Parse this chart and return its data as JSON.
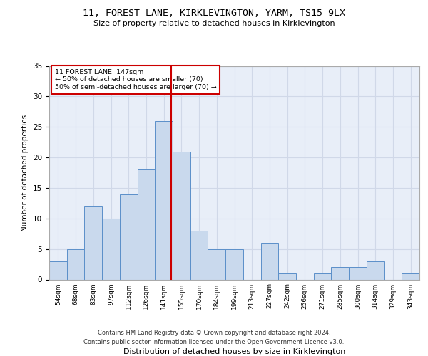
{
  "title1": "11, FOREST LANE, KIRKLEVINGTON, YARM, TS15 9LX",
  "title2": "Size of property relative to detached houses in Kirklevington",
  "xlabel": "Distribution of detached houses by size in Kirklevington",
  "ylabel": "Number of detached properties",
  "bin_labels": [
    "54sqm",
    "68sqm",
    "83sqm",
    "97sqm",
    "112sqm",
    "126sqm",
    "141sqm",
    "155sqm",
    "170sqm",
    "184sqm",
    "199sqm",
    "213sqm",
    "227sqm",
    "242sqm",
    "256sqm",
    "271sqm",
    "285sqm",
    "300sqm",
    "314sqm",
    "329sqm",
    "343sqm"
  ],
  "bar_heights": [
    3,
    5,
    12,
    10,
    14,
    18,
    26,
    21,
    8,
    5,
    5,
    0,
    6,
    1,
    0,
    1,
    2,
    2,
    3,
    0,
    1
  ],
  "bar_color": "#c9d9ed",
  "bar_edge_color": "#5b8fc9",
  "grid_color": "#d0d8e8",
  "background_color": "#e8eef8",
  "vline_color": "#cc0000",
  "annotation_text": "11 FOREST LANE: 147sqm\n← 50% of detached houses are smaller (70)\n50% of semi-detached houses are larger (70) →",
  "annotation_box_color": "white",
  "annotation_box_edge": "#cc0000",
  "footer1": "Contains HM Land Registry data © Crown copyright and database right 2024.",
  "footer2": "Contains public sector information licensed under the Open Government Licence v3.0.",
  "ylim": [
    0,
    35
  ],
  "yticks": [
    0,
    5,
    10,
    15,
    20,
    25,
    30,
    35
  ]
}
